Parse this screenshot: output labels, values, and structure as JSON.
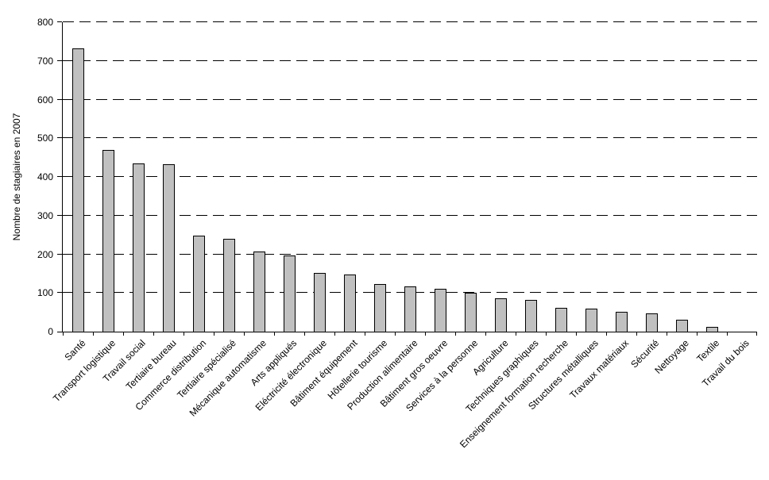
{
  "chart_data": {
    "type": "bar",
    "title": "",
    "xlabel": "",
    "ylabel": "Nombre de stagiaires en 2007",
    "ylim": [
      0,
      800
    ],
    "yticks": [
      0,
      100,
      200,
      300,
      400,
      500,
      600,
      700,
      800
    ],
    "grid": {
      "axis": "y",
      "style": "dashed",
      "color": "#000000"
    },
    "legend": "none",
    "bar_fill_color": "#c0c0c0",
    "bar_border_color": "#000000",
    "categories": [
      "Santé",
      "Transport logistique",
      "Travail social",
      "Tertiaire bureau",
      "Commerce distribution",
      "Tertiaire spécialisé",
      "Mécanique automatisme",
      "Arts appliqués",
      "Eléctricité électronique",
      "Bâtiment équipement",
      "Hôtellerie tourisme",
      "Production alimentaire",
      "Bâtiment gros oeuvre",
      "Services à la personne",
      "Agriculture",
      "Techniques graphiques",
      "Enseignement formation recherche",
      "Structures métalliques",
      "Travaux matériaux",
      "Sécurité",
      "Nettoyage",
      "Textile",
      "Travail du bois"
    ],
    "values": [
      733,
      470,
      435,
      432,
      248,
      239,
      207,
      196,
      152,
      147,
      124,
      117,
      110,
      100,
      86,
      82,
      62,
      59,
      52,
      47,
      31,
      13,
      0
    ]
  }
}
